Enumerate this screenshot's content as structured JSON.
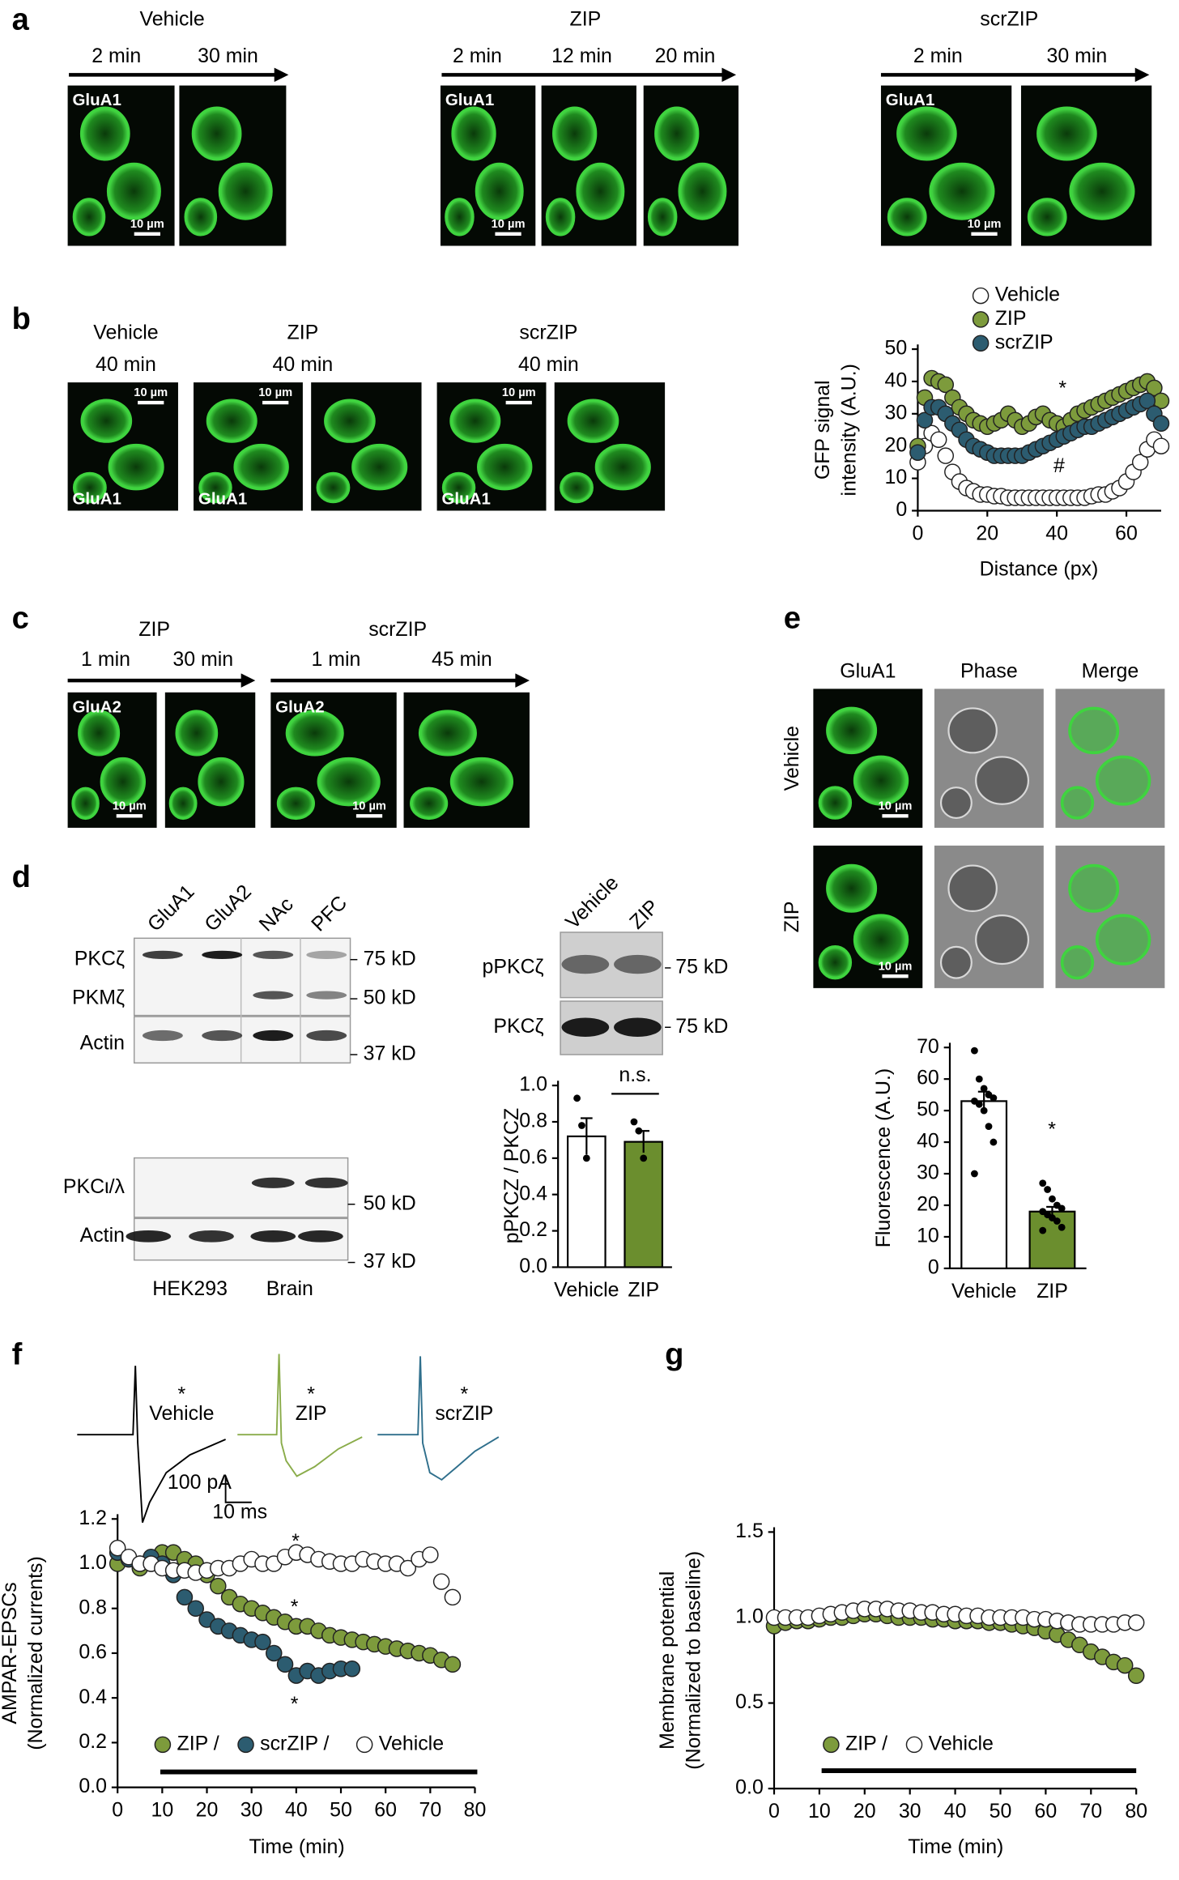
{
  "panel_labels": [
    "a",
    "b",
    "c",
    "d",
    "e",
    "f",
    "g"
  ],
  "panel_a": {
    "groups": [
      {
        "title": "Vehicle",
        "times": [
          "2 min",
          "30 min"
        ],
        "stain": "GluA1",
        "scale": "10 µm"
      },
      {
        "title": "ZIP",
        "times": [
          "2 min",
          "12 min",
          "20 min"
        ],
        "stain": "GluA1",
        "scale": "10 µm"
      },
      {
        "title": "scrZIP",
        "times": [
          "2 min",
          "30 min"
        ],
        "stain": "GluA1",
        "scale": "10 µm"
      }
    ]
  },
  "panel_b": {
    "groups": [
      {
        "title": "Vehicle",
        "time": "40 min",
        "stain": "GluA1",
        "scale": "10 µm"
      },
      {
        "title": "ZIP",
        "time": "40 min",
        "stain": "GluA1",
        "scale": "10 µm"
      },
      {
        "title": "scrZIP",
        "time": "40 min",
        "stain": "GluA1",
        "scale": "10 µm"
      }
    ]
  },
  "panel_c": {
    "groups": [
      {
        "title": "ZIP",
        "times": [
          "1 min",
          "30 min"
        ],
        "stain": "GluA2",
        "scale": "10 µm"
      },
      {
        "title": "scrZIP",
        "times": [
          "1 min",
          "45 min"
        ],
        "stain": "GluA2",
        "scale": "10 µm"
      }
    ]
  },
  "panel_d": {
    "blot1": {
      "lanes": [
        "GluA1",
        "GluA2",
        "NAc",
        "PFC"
      ],
      "rows": [
        "PKCζ",
        "PKMζ",
        "Actin"
      ],
      "markers": [
        "75 kD",
        "50 kD",
        "37 kD"
      ]
    },
    "blot2": {
      "rows": [
        "PKCι/λ",
        "Actin"
      ],
      "markers": [
        "50 kD",
        "37 kD"
      ],
      "groups": [
        "HEK293",
        "Brain"
      ]
    },
    "blot3": {
      "lanes": [
        "Vehicle",
        "ZIP"
      ],
      "rows": [
        "pPKCζ",
        "PKCζ"
      ],
      "markers": [
        "75 kD",
        "75 kD"
      ]
    }
  },
  "panel_e": {
    "columns": [
      "GluA1",
      "Phase",
      "Merge"
    ],
    "rows": [
      "Vehicle",
      "ZIP"
    ],
    "scales": [
      "10 µm",
      "10 µm"
    ]
  },
  "panel_f": {
    "traces": [
      {
        "mark": "*",
        "name": "Vehicle",
        "color": "#000000"
      },
      {
        "mark": "*",
        "name": "ZIP",
        "color": "#8aac4a"
      },
      {
        "mark": "*",
        "name": "scrZIP",
        "color": "#2f6f8c"
      }
    ],
    "scale_y": "100 pA",
    "scale_x": "10 ms"
  },
  "chart_data": [
    {
      "type": "scatter",
      "xlabel": "Distance (px)",
      "ylabel": [
        "GFP signal",
        "intensity (A.U.)"
      ],
      "x": [
        0,
        2,
        4,
        6,
        8,
        10,
        12,
        14,
        16,
        18,
        20,
        22,
        24,
        26,
        28,
        30,
        32,
        34,
        36,
        38,
        40,
        42,
        44,
        46,
        48,
        50,
        52,
        54,
        56,
        58,
        60,
        62,
        64,
        66,
        68,
        70
      ],
      "xlim": [
        0,
        70
      ],
      "xticks": [
        0,
        20,
        40,
        60
      ],
      "ylim": [
        0,
        50
      ],
      "yticks": [
        0,
        10,
        20,
        30,
        40,
        50
      ],
      "series": [
        {
          "name": "Vehicle",
          "color": "#ffffff",
          "values": [
            15,
            20,
            24,
            22,
            17,
            12,
            9,
            7,
            6,
            5,
            5,
            4.5,
            4.5,
            4,
            4,
            4,
            4,
            4,
            4,
            4,
            4,
            4,
            4,
            4,
            4,
            4.5,
            5,
            5,
            6,
            7,
            9,
            12,
            15,
            19,
            22,
            20
          ]
        },
        {
          "name": "ZIP",
          "color": "#7d9b3c",
          "values": [
            20,
            35,
            41,
            40,
            39,
            35,
            32,
            30,
            28,
            27,
            26,
            27,
            28,
            30,
            28,
            26,
            27,
            29,
            30,
            28,
            27,
            26,
            28,
            30,
            31,
            32,
            33,
            34,
            35,
            36,
            37,
            38,
            39,
            40,
            38,
            34
          ]
        },
        {
          "name": "scrZIP",
          "color": "#2c5c70",
          "values": [
            18,
            28,
            32,
            32,
            30,
            27,
            25,
            22,
            20,
            19,
            18,
            17,
            17,
            17,
            17,
            17,
            18,
            19,
            20,
            21,
            22,
            23,
            24,
            25,
            26,
            26,
            27,
            28,
            29,
            30,
            31,
            32,
            33,
            34,
            30,
            27
          ]
        }
      ],
      "annotations": [
        {
          "text": "*",
          "color": "#a69460"
        },
        {
          "text": "#",
          "color": "#2c6b8a"
        }
      ]
    },
    {
      "type": "bar",
      "ylabel": "pPKCZ / PKCZ",
      "categories": [
        "Vehicle",
        "ZIP"
      ],
      "values": [
        0.72,
        0.69
      ],
      "errors": [
        0.1,
        0.06
      ],
      "colors": [
        "#ffffff",
        "#6b8e2e"
      ],
      "points": [
        [
          0.93,
          0.78,
          0.6
        ],
        [
          0.8,
          0.75,
          0.6
        ]
      ],
      "ylim": [
        0,
        1
      ],
      "yticks": [
        {
          "value": 0,
          "label": "0.0"
        },
        0.2,
        0.4,
        0.6,
        0.8,
        {
          "value": 1,
          "label": "1.0"
        }
      ],
      "annotations": [
        {
          "text": "n.s.",
          "color": "#000000"
        }
      ]
    },
    {
      "type": "bar",
      "ylabel": "Fluorescence (A.U.)",
      "categories": [
        "Vehicle",
        "ZIP"
      ],
      "values": [
        53,
        18
      ],
      "errors": [
        3,
        1.5
      ],
      "colors": [
        "#ffffff",
        "#6b8e2e"
      ],
      "points": [
        [
          69,
          60,
          57,
          55,
          54,
          53,
          52,
          50,
          45,
          40,
          30
        ],
        [
          27,
          25,
          22,
          20,
          19,
          18,
          17,
          16,
          15,
          13,
          12
        ]
      ],
      "ylim": [
        0,
        70
      ],
      "yticks": [
        0,
        10,
        20,
        30,
        40,
        50,
        60,
        70
      ],
      "annotations": [
        {
          "text": "*",
          "color": "#7d9b3c"
        }
      ]
    },
    {
      "type": "scatter",
      "xlabel": "Time (min)",
      "ylabel": [
        "AMPAR-EPSCs",
        "(Normalized currents)"
      ],
      "x": [
        0,
        2.5,
        5,
        7.5,
        10,
        12.5,
        15,
        17.5,
        20,
        22.5,
        25,
        27.5,
        30,
        32.5,
        35,
        37.5,
        40,
        42.5,
        45,
        47.5,
        50,
        52.5,
        55,
        57.5,
        60,
        62.5,
        65,
        67.5,
        70,
        72.5,
        75
      ],
      "xlim": [
        0,
        80
      ],
      "xticks": [
        0,
        10,
        20,
        30,
        40,
        50,
        60,
        70,
        80
      ],
      "ylim": [
        0,
        1.2
      ],
      "yticks": [
        {
          "value": 0,
          "label": "0.0"
        },
        0.2,
        0.4,
        0.6,
        0.8,
        {
          "value": 1,
          "label": "1.0"
        },
        1.2
      ],
      "series": [
        {
          "name": "ZIP /",
          "color": "#7d9b3c",
          "values": [
            1.0,
            1.02,
            0.98,
            1.0,
            1.05,
            1.05,
            1.02,
            1.0,
            0.95,
            0.9,
            0.85,
            0.82,
            0.8,
            0.78,
            0.76,
            0.74,
            0.72,
            0.72,
            0.7,
            0.68,
            0.67,
            0.66,
            0.65,
            0.64,
            0.63,
            0.62,
            0.61,
            0.6,
            0.59,
            0.57,
            0.55
          ]
        },
        {
          "name": "scrZIP /",
          "color": "#2c5c70",
          "values": [
            1.05,
            1.02,
            1.0,
            1.03,
            1.0,
            0.95,
            0.85,
            0.8,
            0.75,
            0.72,
            0.7,
            0.68,
            0.66,
            0.65,
            0.6,
            0.55,
            0.5,
            0.52,
            0.5,
            0.52,
            0.53,
            0.53,
            null,
            null,
            null,
            null,
            null,
            null,
            null,
            null,
            null
          ]
        },
        {
          "name": "Vehicle",
          "color": "#ffffff",
          "values": [
            1.07,
            1.03,
            1.0,
            1.0,
            0.98,
            0.97,
            0.97,
            0.96,
            0.97,
            0.98,
            0.98,
            1.0,
            1.02,
            1.0,
            1.0,
            1.03,
            1.05,
            1.04,
            1.02,
            1.01,
            1.0,
            1.0,
            1.02,
            1.01,
            1.0,
            1.0,
            0.98,
            1.02,
            1.04,
            0.92,
            0.85
          ]
        }
      ],
      "annotations": [
        {
          "text": "*",
          "color": "#888888"
        },
        {
          "text": "*",
          "color": "#a09055"
        },
        {
          "text": "*",
          "color": "#2c5c70"
        }
      ]
    },
    {
      "type": "scatter",
      "xlabel": "Time (min)",
      "ylabel": [
        "Membrane potential",
        "(Normalized to baseline)"
      ],
      "x": [
        0,
        2.5,
        5,
        7.5,
        10,
        12.5,
        15,
        17.5,
        20,
        22.5,
        25,
        27.5,
        30,
        32.5,
        35,
        37.5,
        40,
        42.5,
        45,
        47.5,
        50,
        52.5,
        55,
        57.5,
        60,
        62.5,
        65,
        67.5,
        70,
        72.5,
        75,
        77.5,
        80
      ],
      "xlim": [
        0,
        80
      ],
      "xticks": [
        0,
        10,
        20,
        30,
        40,
        50,
        60,
        70,
        80
      ],
      "ylim": [
        0,
        1.5
      ],
      "yticks": [
        {
          "value": 0,
          "label": "0.0"
        },
        0.5,
        {
          "value": 1,
          "label": "1.0"
        },
        1.5
      ],
      "series": [
        {
          "name": "ZIP /",
          "color": "#7d9b3c",
          "values": [
            0.95,
            0.97,
            0.98,
            0.98,
            0.99,
            1.0,
            1.0,
            1.01,
            1.02,
            1.02,
            1.01,
            1.0,
            1.0,
            1.0,
            0.99,
            0.99,
            0.98,
            0.98,
            0.98,
            0.97,
            0.97,
            0.96,
            0.95,
            0.94,
            0.92,
            0.9,
            0.87,
            0.84,
            0.8,
            0.77,
            0.74,
            0.72,
            0.66
          ]
        },
        {
          "name": "Vehicle",
          "color": "#ffffff",
          "values": [
            1.0,
            1.0,
            1.0,
            1.0,
            1.01,
            1.02,
            1.03,
            1.04,
            1.05,
            1.05,
            1.05,
            1.04,
            1.04,
            1.03,
            1.03,
            1.02,
            1.02,
            1.01,
            1.01,
            1.0,
            1.0,
            1.0,
            1.0,
            0.99,
            0.99,
            0.98,
            0.97,
            0.96,
            0.96,
            0.96,
            0.96,
            0.97,
            0.97
          ]
        }
      ]
    }
  ]
}
